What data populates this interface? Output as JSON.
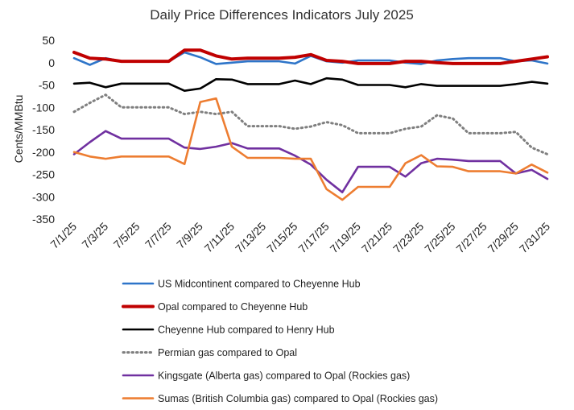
{
  "chart_data": {
    "type": "line",
    "title": "Daily Price Differences Indicators July 2025",
    "xlabel": "",
    "ylabel": "Cents/MMBtu",
    "ylim": [
      -350,
      50
    ],
    "yticks": [
      50,
      0,
      -50,
      -100,
      -150,
      -200,
      -250,
      -300,
      -350
    ],
    "grid": false,
    "legend_position": "bottom",
    "x": [
      "7/1/25",
      "7/2/25",
      "7/3/25",
      "7/4/25",
      "7/5/25",
      "7/6/25",
      "7/7/25",
      "7/8/25",
      "7/9/25",
      "7/10/25",
      "7/11/25",
      "7/12/25",
      "7/13/25",
      "7/14/25",
      "7/15/25",
      "7/16/25",
      "7/17/25",
      "7/18/25",
      "7/19/25",
      "7/20/25",
      "7/21/25",
      "7/22/25",
      "7/23/25",
      "7/24/25",
      "7/25/25",
      "7/26/25",
      "7/27/25",
      "7/28/25",
      "7/29/25",
      "7/30/25",
      "7/31/25"
    ],
    "xtick_labels": [
      "7/1/25",
      "7/3/25",
      "7/5/25",
      "7/7/25",
      "7/9/25",
      "7/11/25",
      "7/13/25",
      "7/15/25",
      "7/17/25",
      "7/19/25",
      "7/21/25",
      "7/23/25",
      "7/25/25",
      "7/27/25",
      "7/29/25",
      "7/31/25"
    ],
    "series": [
      {
        "name": "US Midcontinent compared to Cheyenne Hub",
        "color": "#2E75C9",
        "style": "solid",
        "values": [
          10,
          -5,
          10,
          3,
          3,
          3,
          3,
          23,
          12,
          -3,
          0,
          3,
          3,
          3,
          -2,
          15,
          3,
          0,
          5,
          5,
          5,
          0,
          -3,
          5,
          8,
          10,
          10,
          10,
          3,
          5,
          -2
        ]
      },
      {
        "name": "Opal compared to Cheyenne Hub",
        "color": "#C00000",
        "style": "solid-thick",
        "values": [
          23,
          10,
          8,
          3,
          3,
          3,
          3,
          28,
          28,
          15,
          8,
          10,
          10,
          10,
          12,
          18,
          5,
          3,
          -2,
          -2,
          -2,
          3,
          3,
          0,
          -2,
          -2,
          -2,
          -2,
          3,
          8,
          13
        ]
      },
      {
        "name": "Cheyenne Hub compared to Henry Hub",
        "color": "#000000",
        "style": "solid",
        "values": [
          -47,
          -45,
          -55,
          -47,
          -47,
          -47,
          -47,
          -63,
          -58,
          -37,
          -38,
          -48,
          -48,
          -48,
          -40,
          -48,
          -35,
          -38,
          -50,
          -50,
          -50,
          -55,
          -48,
          -52,
          -52,
          -52,
          -52,
          -52,
          -48,
          -43,
          -47
        ]
      },
      {
        "name": "Permian gas compared to Opal",
        "color": "#7F7F7F",
        "style": "dotted",
        "values": [
          -110,
          -90,
          -72,
          -100,
          -100,
          -100,
          -100,
          -115,
          -110,
          -115,
          -110,
          -142,
          -142,
          -142,
          -148,
          -143,
          -133,
          -140,
          -158,
          -158,
          -158,
          -148,
          -143,
          -118,
          -125,
          -158,
          -158,
          -158,
          -155,
          -190,
          -205
        ]
      },
      {
        "name": "Kingsgate (Alberta gas) compared to Opal (Rockies gas)",
        "color": "#7030A0",
        "style": "solid",
        "values": [
          -205,
          -178,
          -153,
          -170,
          -170,
          -170,
          -170,
          -190,
          -193,
          -188,
          -180,
          -192,
          -192,
          -192,
          -208,
          -228,
          -262,
          -290,
          -233,
          -233,
          -233,
          -255,
          -225,
          -215,
          -217,
          -220,
          -220,
          -220,
          -248,
          -240,
          -260
        ]
      },
      {
        "name": "Sumas (British Columbia gas) compared to Opal (Rockies gas)",
        "color": "#ED7D31",
        "style": "solid",
        "values": [
          -200,
          -210,
          -215,
          -210,
          -210,
          -210,
          -210,
          -227,
          -88,
          -80,
          -188,
          -213,
          -213,
          -213,
          -215,
          -215,
          -283,
          -307,
          -278,
          -278,
          -278,
          -225,
          -207,
          -232,
          -233,
          -243,
          -243,
          -243,
          -248,
          -228,
          -246
        ]
      }
    ]
  }
}
